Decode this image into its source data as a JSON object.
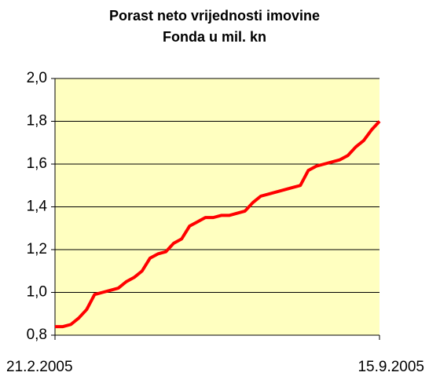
{
  "chart_data": {
    "type": "line",
    "title": [
      "Porast neto vrijednosti imovine",
      "Fonda u mil. kn"
    ],
    "categories": [
      "21.2.2005",
      null,
      null,
      null,
      null,
      null,
      null,
      null,
      null,
      null,
      null,
      null,
      null,
      null,
      null,
      null,
      null,
      null,
      null,
      null,
      null,
      null,
      null,
      null,
      null,
      null,
      null,
      null,
      null,
      null,
      null,
      null,
      null,
      null,
      null,
      null,
      null,
      null,
      null,
      null,
      null,
      "15.9.2005"
    ],
    "series": [
      {
        "name": null,
        "color": "#ff0000",
        "values": [
          0.84,
          0.84,
          0.85,
          0.88,
          0.92,
          0.99,
          1.0,
          1.01,
          1.02,
          1.05,
          1.07,
          1.1,
          1.16,
          1.18,
          1.19,
          1.23,
          1.25,
          1.31,
          1.33,
          1.35,
          1.35,
          1.36,
          1.36,
          1.37,
          1.38,
          1.42,
          1.45,
          1.46,
          1.47,
          1.48,
          1.49,
          1.5,
          1.57,
          1.59,
          1.6,
          1.61,
          1.62,
          1.64,
          1.68,
          1.71,
          1.76,
          1.8
        ]
      }
    ],
    "ylim": [
      0.8,
      2.0
    ],
    "yticks": [
      {
        "value": 0.8,
        "label": "0,8"
      },
      {
        "value": 1.0,
        "label": "1,0"
      },
      {
        "value": 1.2,
        "label": "1,2"
      },
      {
        "value": 1.4,
        "label": "1,4"
      },
      {
        "value": 1.6,
        "label": "1,6"
      },
      {
        "value": 1.8,
        "label": "1,8"
      },
      {
        "value": 2.0,
        "label": "2,0"
      }
    ],
    "grid": true,
    "plot_background": "#ffffc0"
  }
}
